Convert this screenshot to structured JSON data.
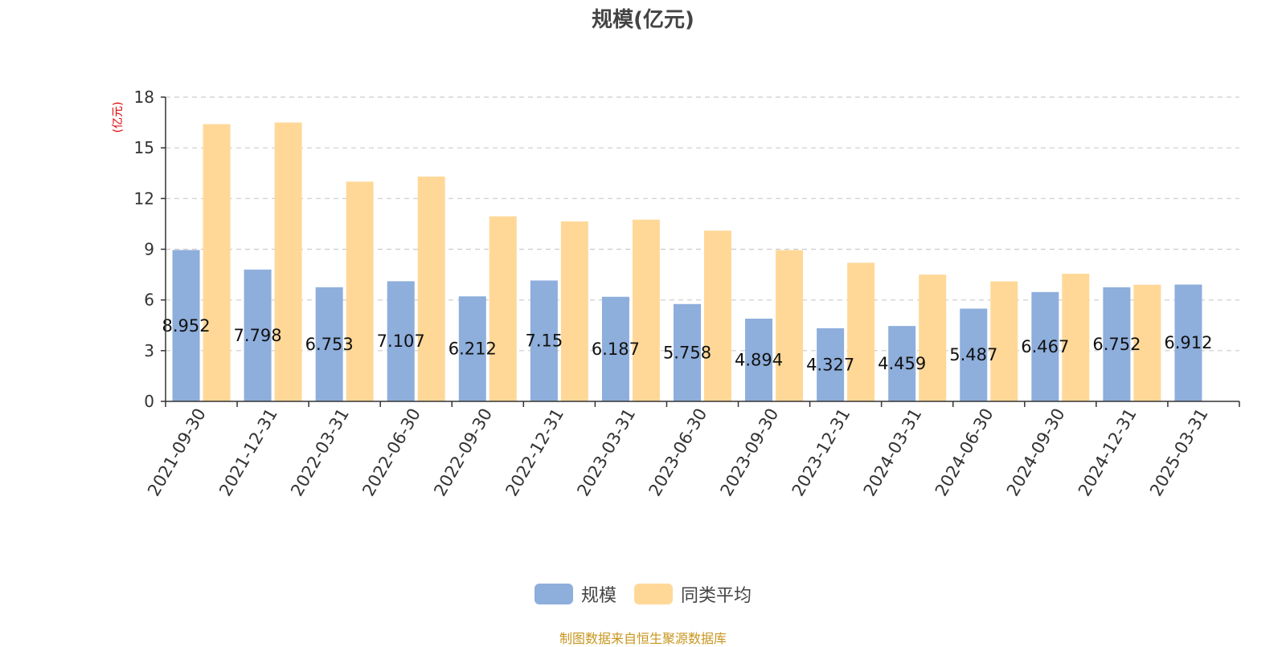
{
  "chart_data": {
    "type": "bar",
    "title": "规模(亿元)",
    "ylabel": "(亿元)",
    "xlabel": "",
    "ylim": [
      0,
      18
    ],
    "yticks": [
      0,
      3,
      6,
      9,
      12,
      15,
      18
    ],
    "categories": [
      "2021-09-30",
      "2021-12-31",
      "2022-03-31",
      "2022-06-30",
      "2022-09-30",
      "2022-12-31",
      "2023-03-31",
      "2023-06-30",
      "2023-09-30",
      "2023-12-31",
      "2024-03-31",
      "2024-06-30",
      "2024-09-30",
      "2024-12-31",
      "2025-03-31"
    ],
    "series": [
      {
        "name": "规模",
        "color": "#8eaedc",
        "values": [
          8.952,
          7.798,
          6.753,
          7.107,
          6.212,
          7.15,
          6.187,
          5.758,
          4.894,
          4.327,
          4.459,
          5.487,
          6.467,
          6.752,
          6.912
        ],
        "labels": [
          "8.952",
          "7.798",
          "6.753",
          "7.107",
          "6.212",
          "7.15",
          "6.187",
          "5.758",
          "4.894",
          "4.327",
          "4.459",
          "5.487",
          "6.467",
          "6.752",
          "6.912"
        ]
      },
      {
        "name": "同类平均",
        "color": "#ffd898",
        "values": [
          16.4,
          16.5,
          13.0,
          13.3,
          10.95,
          10.65,
          10.75,
          10.1,
          8.95,
          8.2,
          7.5,
          7.1,
          7.55,
          6.9,
          null
        ]
      }
    ],
    "grid": true,
    "legend_position": "bottom-center"
  },
  "footer": {
    "source": "制图数据来自恒生聚源数据库"
  }
}
